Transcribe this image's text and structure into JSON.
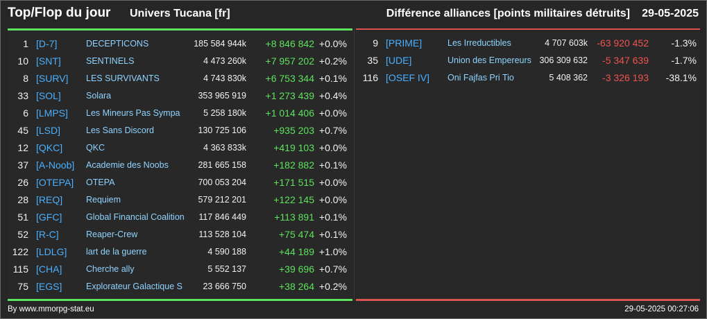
{
  "header": {
    "title": "Top/Flop du jour",
    "universe": "Univers Tucana [fr]",
    "subtitle": "Différence alliances [points militaires détruits]",
    "date": "29-05-2025"
  },
  "colors": {
    "positive": "#5ee35e",
    "negative": "#ef5350",
    "tag": "#4ab0ff",
    "name": "#8fd3ff"
  },
  "top": [
    {
      "rank": "1",
      "tag": "[D-7]",
      "name": "DECEPTICONS",
      "points": "185 584 944k",
      "diff": "+8 846 842",
      "pct": "+0.0%"
    },
    {
      "rank": "10",
      "tag": "[SNT]",
      "name": "SENTINELS",
      "points": "4 473 260k",
      "diff": "+7 957 202",
      "pct": "+0.2%"
    },
    {
      "rank": "8",
      "tag": "[SURV]",
      "name": "LES SURVIVANTS",
      "points": "4 743 830k",
      "diff": "+6 753 344",
      "pct": "+0.1%"
    },
    {
      "rank": "33",
      "tag": "[SOL]",
      "name": "Solara",
      "points": "353 965 919",
      "diff": "+1 273 439",
      "pct": "+0.4%"
    },
    {
      "rank": "6",
      "tag": "[LMPS]",
      "name": "Les Mineurs Pas Sympa",
      "points": "5 258 180k",
      "diff": "+1 014 406",
      "pct": "+0.0%"
    },
    {
      "rank": "45",
      "tag": "[LSD]",
      "name": "Les Sans Discord",
      "points": "130 725 106",
      "diff": "+935 203",
      "pct": "+0.7%"
    },
    {
      "rank": "12",
      "tag": "[QKC]",
      "name": "QKC",
      "points": "4 363 833k",
      "diff": "+419 103",
      "pct": "+0.0%"
    },
    {
      "rank": "37",
      "tag": "[A-Noob]",
      "name": "Academie des Noobs",
      "points": "281 665 158",
      "diff": "+182 882",
      "pct": "+0.1%"
    },
    {
      "rank": "26",
      "tag": "[OTEPA]",
      "name": "OTEPA",
      "points": "700 053 204",
      "diff": "+171 515",
      "pct": "+0.0%"
    },
    {
      "rank": "28",
      "tag": "[REQ]",
      "name": "Requiem",
      "points": "579 212 201",
      "diff": "+122 145",
      "pct": "+0.0%"
    },
    {
      "rank": "51",
      "tag": "[GFC]",
      "name": "Global Financial Coalition",
      "points": "117 846 449",
      "diff": "+113 891",
      "pct": "+0.1%"
    },
    {
      "rank": "52",
      "tag": "[R-C]",
      "name": "Reaper-Crew",
      "points": "113 528 104",
      "diff": "+75 474",
      "pct": "+0.1%"
    },
    {
      "rank": "122",
      "tag": "[LDLG]",
      "name": "lart de la guerre",
      "points": "4 590 188",
      "diff": "+44 189",
      "pct": "+1.0%"
    },
    {
      "rank": "115",
      "tag": "[CHA]",
      "name": "Cherche ally",
      "points": "5 552 137",
      "diff": "+39 696",
      "pct": "+0.7%"
    },
    {
      "rank": "75",
      "tag": "[EGS]",
      "name": "Explorateur Galactique S",
      "points": "23 666 750",
      "diff": "+38 264",
      "pct": "+0.2%"
    }
  ],
  "flop": [
    {
      "rank": "9",
      "tag": "[PRIME]",
      "name": "Les Irreductibles",
      "points": "4 707 603k",
      "diff": "-63 920 452",
      "pct": "-1.3%"
    },
    {
      "rank": "35",
      "tag": "[UDE]",
      "name": "Union des Empereurs",
      "points": "306 309 632",
      "diff": "-5 347 639",
      "pct": "-1.7%"
    },
    {
      "rank": "116",
      "tag": "[OSEF IV]",
      "name": "Oni Fajfas Pri Tio",
      "points": "5 408 362",
      "diff": "-3 326 193",
      "pct": "-38.1%"
    }
  ],
  "footer": {
    "source": "By www.mmorpg-stat.eu",
    "timestamp": "29-05-2025 00:27:06"
  }
}
